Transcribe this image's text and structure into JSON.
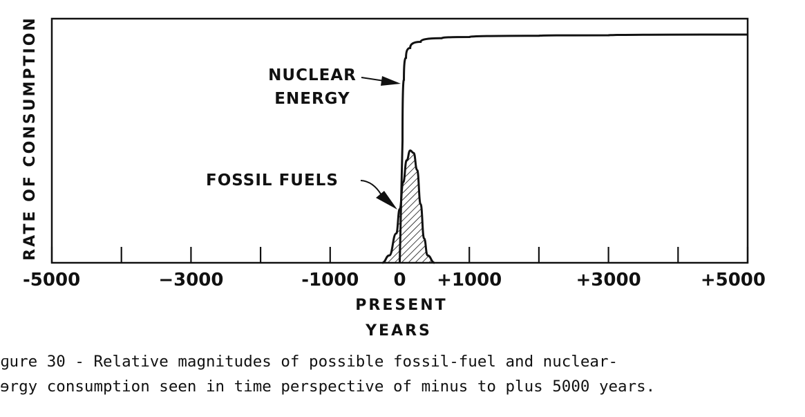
{
  "chart_data": {
    "type": "line",
    "xlabel": "YEARS",
    "ylabel": "RATE OF CONSUMPTION",
    "xlim": [
      -5000,
      5000
    ],
    "x_ticks": [
      -5000,
      -4000,
      -3000,
      -2000,
      -1000,
      0,
      1000,
      2000,
      3000,
      4000,
      5000
    ],
    "x_tick_labels": [
      {
        "value": -5000,
        "text": "-5000"
      },
      {
        "value": -3000,
        "text": "−3000"
      },
      {
        "value": -1000,
        "text": "-1000"
      },
      {
        "value": 0,
        "text": "0"
      },
      {
        "value": 1000,
        "text": "+1000"
      },
      {
        "value": 3000,
        "text": "+3000"
      },
      {
        "value": 5000,
        "text": "+5000"
      }
    ],
    "present_label": "PRESENT",
    "y_ticks_labeled": false,
    "grid": false,
    "series": [
      {
        "name": "NUCLEAR ENERGY",
        "color": "#111111",
        "points": [
          [
            0,
            0
          ],
          [
            40,
            0.5
          ],
          [
            60,
            0.75
          ],
          [
            90,
            0.84
          ],
          [
            150,
            0.88
          ],
          [
            300,
            0.905
          ],
          [
            600,
            0.92
          ],
          [
            1000,
            0.925
          ],
          [
            2000,
            0.93
          ],
          [
            3000,
            0.932
          ],
          [
            5000,
            0.935
          ]
        ]
      },
      {
        "name": "FOSSIL FUELS",
        "color": "#111111",
        "fill": "hatched",
        "points": [
          [
            -250,
            0
          ],
          [
            -150,
            0.03
          ],
          [
            -50,
            0.12
          ],
          [
            0,
            0.22
          ],
          [
            50,
            0.33
          ],
          [
            100,
            0.42
          ],
          [
            150,
            0.46
          ],
          [
            200,
            0.45
          ],
          [
            250,
            0.38
          ],
          [
            300,
            0.24
          ],
          [
            350,
            0.1
          ],
          [
            400,
            0.03
          ],
          [
            500,
            0
          ]
        ]
      }
    ],
    "annotations": [
      {
        "text_lines": [
          "NUCLEAR",
          "ENERGY"
        ],
        "points_to": "NUCLEAR ENERGY"
      },
      {
        "text_lines": [
          "FOSSIL  FUELS"
        ],
        "points_to": "FOSSIL FUELS"
      }
    ]
  },
  "caption": {
    "line1": "ɡure 30 - Relative magnitudes of possible fossil-fuel and nuclear-",
    "line2": "ɘrgy consumption seen in time perspective of minus to plus 5000 years."
  }
}
